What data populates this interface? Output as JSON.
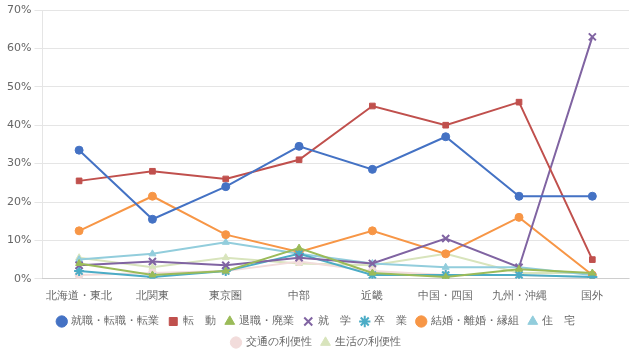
{
  "chart_data": {
    "type": "line",
    "categories": [
      "北海道・東北",
      "北関東",
      "東京圏",
      "中部",
      "近畿",
      "中国・四国",
      "九州・沖縄",
      "国外"
    ],
    "series": [
      {
        "name": "就職・転職・転業",
        "values": [
          33.5,
          15.5,
          24.0,
          34.5,
          28.5,
          37.0,
          21.5,
          21.5
        ],
        "color": "#4472C4",
        "marker": "circle"
      },
      {
        "name": "転　動",
        "values": [
          25.5,
          28.0,
          26.0,
          31.0,
          45.0,
          40.0,
          46.0,
          5.0
        ],
        "color": "#C0504D",
        "marker": "square"
      },
      {
        "name": "退職・廃業",
        "values": [
          4.0,
          1.0,
          2.0,
          8.0,
          1.5,
          0.5,
          2.5,
          1.5
        ],
        "color": "#9BBB59",
        "marker": "triangle"
      },
      {
        "name": "就　学",
        "values": [
          3.5,
          4.5,
          3.5,
          5.5,
          4.0,
          10.5,
          3.0,
          63.0
        ],
        "color": "#8064A2",
        "marker": "x"
      },
      {
        "name": "卒　業",
        "values": [
          2.0,
          0.5,
          2.0,
          6.5,
          1.0,
          1.0,
          1.0,
          0.5
        ],
        "color": "#4BACC6",
        "marker": "star"
      },
      {
        "name": "結婚・離婚・縁組",
        "values": [
          12.5,
          21.5,
          11.5,
          7.0,
          12.5,
          6.5,
          16.0,
          1.0
        ],
        "color": "#F79646",
        "marker": "circle"
      },
      {
        "name": "住　宅",
        "values": [
          5.0,
          6.5,
          9.5,
          6.5,
          4.0,
          3.0,
          3.0,
          1.0
        ],
        "color": "#92CDDC",
        "marker": "triangle"
      },
      {
        "name": "交通の利便性",
        "values": [
          1.0,
          1.5,
          2.0,
          4.5,
          2.0,
          1.0,
          1.0,
          0.5
        ],
        "color": "#F2DCDB",
        "marker": "circle"
      },
      {
        "name": "生活の利便性",
        "values": [
          5.5,
          3.0,
          5.5,
          4.0,
          3.5,
          6.5,
          1.5,
          1.5
        ],
        "color": "#D8E4BC",
        "marker": "triangle"
      }
    ],
    "ylim": [
      0,
      70
    ],
    "yticks": [
      {
        "value": 0,
        "label": "0%"
      },
      {
        "value": 10,
        "label": "10%"
      },
      {
        "value": 20,
        "label": "20%"
      },
      {
        "value": 30,
        "label": "30%"
      },
      {
        "value": 40,
        "label": "40%"
      },
      {
        "value": 50,
        "label": "50%"
      },
      {
        "value": 60,
        "label": "60%"
      },
      {
        "value": 70,
        "label": "70%"
      }
    ],
    "grid": "y",
    "legend": "bottom"
  }
}
